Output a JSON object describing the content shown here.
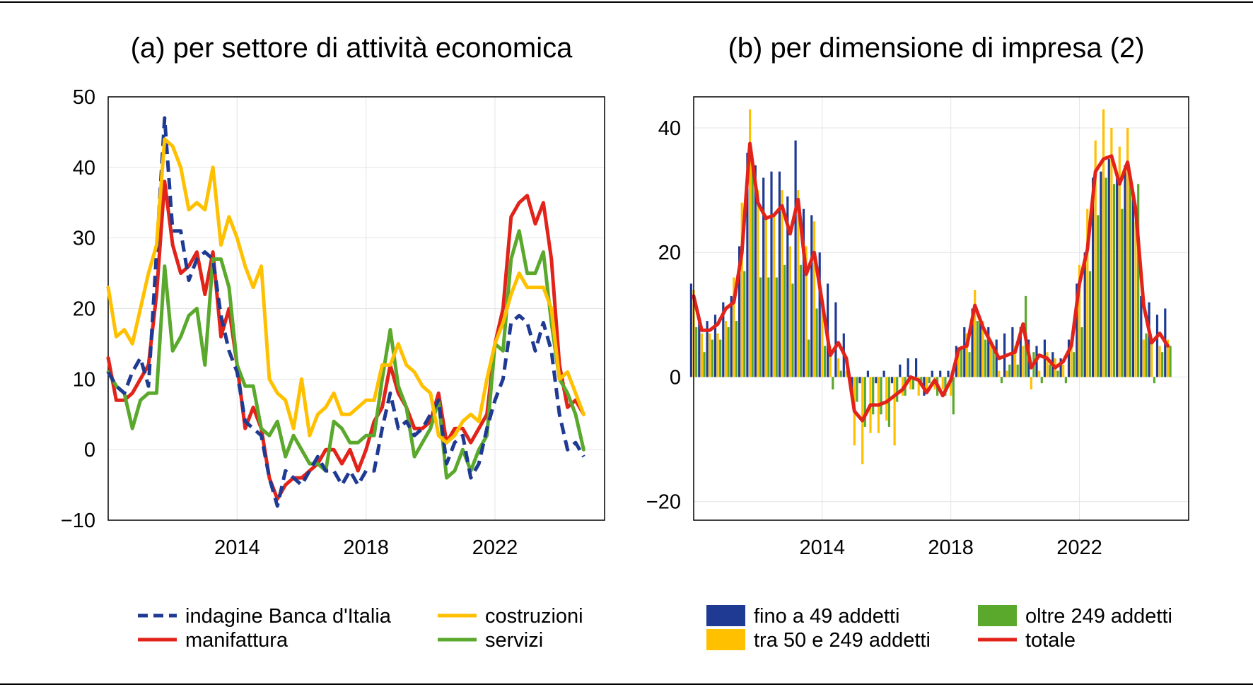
{
  "colors": {
    "indagine": "#1f3a93",
    "costruzioni": "#ffc000",
    "manifattura": "#e2231a",
    "servizi": "#5aa82c",
    "fino49": "#1f3a93",
    "tra50_249": "#ffc000",
    "oltre249": "#5aa82c",
    "totale": "#e2231a"
  },
  "chart_data": [
    {
      "type": "line",
      "title": "(a) per settore di attività economica",
      "xlabel": "",
      "ylabel": "",
      "xlim": [
        2010,
        2025.4
      ],
      "ylim": [
        -10,
        50
      ],
      "xticks": [
        {
          "value": 2014,
          "label": "2014"
        },
        {
          "value": 2018,
          "label": "2018"
        },
        {
          "value": 2022,
          "label": "2022"
        }
      ],
      "yticks": [
        {
          "value": 50,
          "label": "50"
        },
        {
          "value": 40,
          "label": "40"
        },
        {
          "value": 30,
          "label": "30"
        },
        {
          "value": 20,
          "label": "20"
        },
        {
          "value": 10,
          "label": "10"
        },
        {
          "value": 0,
          "label": "0"
        },
        {
          "value": -10,
          "label": "−10"
        }
      ],
      "grid": true,
      "legend": "bottom",
      "x": [
        2010.0,
        2010.25,
        2010.5,
        2010.75,
        2011.0,
        2011.25,
        2011.5,
        2011.75,
        2012.0,
        2012.25,
        2012.5,
        2012.75,
        2013.0,
        2013.25,
        2013.5,
        2013.75,
        2014.0,
        2014.25,
        2014.5,
        2014.75,
        2015.0,
        2015.25,
        2015.5,
        2015.75,
        2016.0,
        2016.25,
        2016.5,
        2016.75,
        2017.0,
        2017.25,
        2017.5,
        2017.75,
        2018.0,
        2018.25,
        2018.5,
        2018.75,
        2019.0,
        2019.25,
        2019.5,
        2019.75,
        2020.0,
        2020.25,
        2020.5,
        2020.75,
        2021.0,
        2021.25,
        2021.5,
        2021.75,
        2022.0,
        2022.25,
        2022.5,
        2022.75,
        2023.0,
        2023.25,
        2023.5,
        2023.75,
        2024.0,
        2024.25,
        2024.5,
        2024.75,
        2025.0,
        2025.25
      ],
      "series": [
        {
          "name": "indagine Banca d'Italia",
          "color_key": "indagine",
          "dash": true,
          "values": [
            11,
            9,
            8,
            11,
            13,
            9,
            28,
            47,
            31,
            31,
            24,
            27,
            28,
            27,
            19,
            14,
            11,
            4,
            3,
            2,
            -4,
            -8,
            -3,
            -4,
            -5,
            -3,
            -1,
            -3,
            -3,
            -5,
            -3,
            -5,
            -3,
            -3,
            3,
            8,
            3,
            4,
            2,
            3,
            5,
            7,
            -2,
            1,
            2,
            -4,
            -2,
            3,
            7,
            10,
            18,
            19,
            18,
            14,
            18,
            14,
            5,
            0,
            1,
            -1,
            null,
            null
          ]
        },
        {
          "name": "costruzioni",
          "color_key": "costruzioni",
          "dash": false,
          "values": [
            23,
            16,
            17,
            15,
            20,
            25,
            29,
            44,
            43,
            40,
            34,
            35,
            34,
            40,
            29,
            33,
            30,
            26,
            23,
            26,
            10,
            8,
            7,
            3,
            10,
            2,
            5,
            6,
            8,
            5,
            5,
            6,
            7,
            7,
            12,
            12,
            15,
            12,
            11,
            9,
            8,
            2,
            1,
            2,
            4,
            5,
            4,
            10,
            15,
            18,
            22,
            25,
            23,
            23,
            23,
            20,
            10,
            11,
            8,
            5,
            null,
            null
          ]
        },
        {
          "name": "manifattura",
          "color_key": "manifattura",
          "dash": false,
          "values": [
            13,
            7,
            7,
            8,
            10,
            12,
            22,
            38,
            29,
            25,
            26,
            28,
            22,
            28,
            16,
            20,
            12,
            3,
            6,
            3,
            -4,
            -7,
            -5,
            -4,
            -4,
            -3,
            -2,
            0,
            0,
            -2,
            0,
            -3,
            0,
            4,
            6,
            12,
            8,
            6,
            3,
            3,
            4,
            8,
            1,
            3,
            3,
            1,
            3,
            5,
            15,
            20,
            33,
            35,
            36,
            32,
            35,
            27,
            12,
            6,
            7,
            5,
            null,
            null
          ]
        },
        {
          "name": "servizi",
          "color_key": "servizi",
          "dash": false,
          "values": [
            11,
            9,
            8,
            3,
            7,
            8,
            8,
            26,
            14,
            16,
            19,
            20,
            12,
            27,
            27,
            23,
            12,
            9,
            9,
            3,
            2,
            4,
            -1,
            2,
            0,
            -2,
            -2,
            -3,
            4,
            3,
            1,
            1,
            2,
            2,
            10,
            17,
            9,
            6,
            -1,
            1,
            3,
            7,
            -4,
            -3,
            0,
            -3,
            0,
            2,
            15,
            14,
            27,
            31,
            25,
            25,
            28,
            18,
            10,
            8,
            5,
            0,
            null,
            null
          ]
        }
      ]
    },
    {
      "type": "bar",
      "title": "(b) per dimensione di impresa (2)",
      "xlabel": "",
      "ylabel": "",
      "xlim": [
        2010,
        2025.4
      ],
      "ylim": [
        -23,
        45
      ],
      "xticks": [
        {
          "value": 2014,
          "label": "2014"
        },
        {
          "value": 2018,
          "label": "2018"
        },
        {
          "value": 2022,
          "label": "2022"
        }
      ],
      "yticks": [
        {
          "value": 40,
          "label": "40"
        },
        {
          "value": 20,
          "label": "20"
        },
        {
          "value": 0,
          "label": "0"
        },
        {
          "value": -20,
          "label": "−20"
        }
      ],
      "grid": true,
      "legend": "bottom",
      "x": [
        2010.0,
        2010.25,
        2010.5,
        2010.75,
        2011.0,
        2011.25,
        2011.5,
        2011.75,
        2012.0,
        2012.25,
        2012.5,
        2012.75,
        2013.0,
        2013.25,
        2013.5,
        2013.75,
        2014.0,
        2014.25,
        2014.5,
        2014.75,
        2015.0,
        2015.25,
        2015.5,
        2015.75,
        2016.0,
        2016.25,
        2016.5,
        2016.75,
        2017.0,
        2017.25,
        2017.5,
        2017.75,
        2018.0,
        2018.25,
        2018.5,
        2018.75,
        2019.0,
        2019.25,
        2019.5,
        2019.75,
        2020.0,
        2020.25,
        2020.5,
        2020.75,
        2021.0,
        2021.25,
        2021.5,
        2021.75,
        2022.0,
        2022.25,
        2022.5,
        2022.75,
        2023.0,
        2023.25,
        2023.5,
        2023.75,
        2024.0,
        2024.25,
        2024.5,
        2024.75,
        2025.0
      ],
      "series": [
        {
          "name": "fino a 49 addetti",
          "color_key": "fino49",
          "kind": "bar",
          "values": [
            15,
            9,
            9,
            10,
            12,
            13,
            21,
            36,
            34,
            32,
            33,
            33,
            29,
            38,
            27,
            26,
            20,
            15,
            12,
            7,
            -3,
            -1,
            1,
            -1,
            1,
            -1,
            2,
            3,
            3,
            -3,
            1,
            1,
            1,
            5,
            8,
            11,
            9,
            8,
            6,
            7,
            8,
            8,
            6,
            5,
            6,
            4,
            3,
            6,
            15,
            20,
            32,
            33,
            35,
            32,
            34,
            29,
            13,
            12,
            10,
            11,
            null
          ]
        },
        {
          "name": "tra 50 e 249 addetti",
          "color_key": "tra50_249",
          "kind": "bar",
          "values": [
            14,
            7,
            7,
            7,
            9,
            16,
            28,
            43,
            30,
            26,
            26,
            30,
            21,
            30,
            21,
            25,
            12,
            5,
            3,
            1,
            -11,
            -14,
            -9,
            -9,
            -7,
            -11,
            -3,
            -2,
            -3,
            -2,
            -2,
            -2,
            -3,
            4,
            7,
            14,
            9,
            6,
            1,
            1,
            5,
            5,
            -2,
            1,
            4,
            3,
            2,
            5,
            18,
            27,
            38,
            43,
            40,
            37,
            40,
            25,
            6,
            6,
            5,
            6,
            null
          ]
        },
        {
          "name": "oltre 249 addetti",
          "color_key": "oltre249",
          "kind": "bar",
          "values": [
            8,
            4,
            6,
            6,
            8,
            9,
            17,
            35,
            16,
            16,
            16,
            18,
            15,
            18,
            6,
            11,
            5,
            -2,
            1,
            0,
            -4,
            -8,
            -6,
            -6,
            -8,
            -4,
            -3,
            -2,
            -1,
            -1,
            -3,
            -3,
            -6,
            5,
            4,
            9,
            6,
            5,
            -1,
            2,
            2,
            13,
            4,
            -1,
            2,
            1,
            -1,
            4,
            8,
            17,
            26,
            32,
            31,
            27,
            32,
            31,
            7,
            -1,
            4,
            5,
            null
          ]
        },
        {
          "name": "totale",
          "color_key": "totale",
          "kind": "line",
          "values": [
            13,
            7.5,
            7.5,
            8.5,
            11,
            12,
            20,
            37.5,
            28,
            25.5,
            26,
            27.5,
            23,
            28.5,
            16.5,
            20,
            12,
            3.5,
            5.5,
            3,
            -5.5,
            -7,
            -4.5,
            -4.5,
            -4,
            -3,
            -2,
            0,
            -0.5,
            -2.5,
            -0.5,
            -3,
            -0.5,
            4.5,
            5,
            11.5,
            8,
            5.5,
            3,
            3.5,
            4,
            8.5,
            1.5,
            3.5,
            3,
            1.5,
            2.5,
            5,
            15,
            20.5,
            33,
            35,
            35.5,
            31,
            34.5,
            27,
            11.5,
            5.5,
            7,
            5,
            null
          ]
        }
      ]
    }
  ],
  "legends": {
    "a": [
      {
        "label": "indagine Banca d'Italia",
        "color_key": "indagine",
        "kind": "dashed"
      },
      {
        "label": "manifattura",
        "color_key": "manifattura",
        "kind": "line"
      },
      {
        "label": "costruzioni",
        "color_key": "costruzioni",
        "kind": "line"
      },
      {
        "label": "servizi",
        "color_key": "servizi",
        "kind": "line"
      }
    ],
    "b": [
      {
        "label": "fino a 49 addetti",
        "color_key": "fino49",
        "kind": "box"
      },
      {
        "label": "tra 50 e 249 addetti",
        "color_key": "tra50_249",
        "kind": "box"
      },
      {
        "label": "oltre 249 addetti",
        "color_key": "oltre249",
        "kind": "box"
      },
      {
        "label": "totale",
        "color_key": "totale",
        "kind": "line"
      }
    ]
  }
}
